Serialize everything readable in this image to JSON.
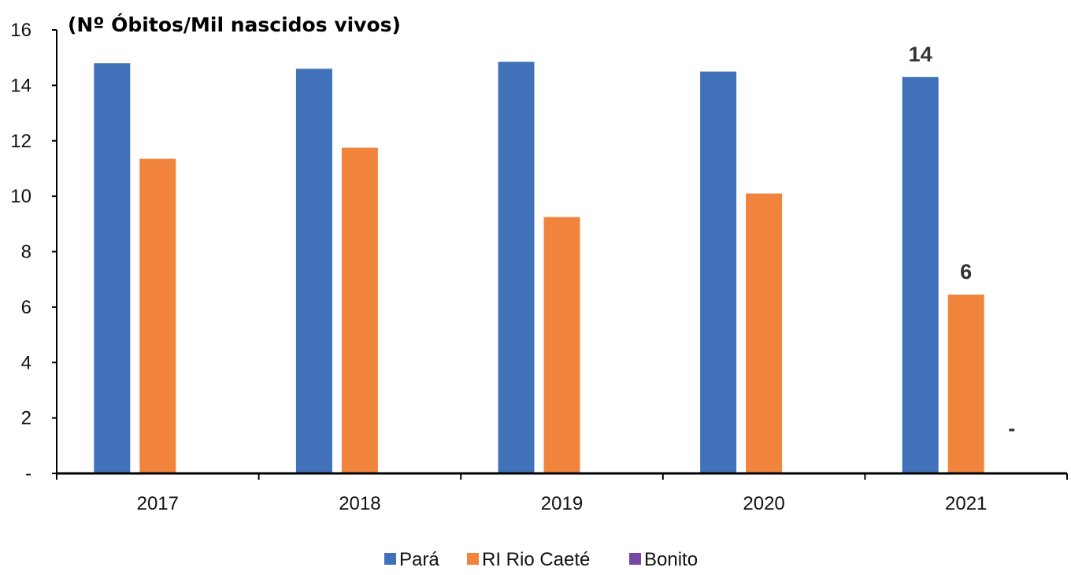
{
  "chart_data": {
    "type": "bar",
    "title": "(Nº Óbitos/Mil nascidos vivos)",
    "xlabel": "",
    "ylabel": "",
    "ylim": [
      0,
      16
    ],
    "y_ticks": [
      {
        "value": 0,
        "label": "-"
      },
      {
        "value": 2,
        "label": "2"
      },
      {
        "value": 4,
        "label": "4"
      },
      {
        "value": 6,
        "label": "6"
      },
      {
        "value": 8,
        "label": "8"
      },
      {
        "value": 10,
        "label": "10"
      },
      {
        "value": 12,
        "label": "12"
      },
      {
        "value": 14,
        "label": "14"
      },
      {
        "value": 16,
        "label": "16"
      }
    ],
    "grid": false,
    "legend_position": "bottom",
    "categories": [
      "2017",
      "2018",
      "2019",
      "2020",
      "2021"
    ],
    "series": [
      {
        "name": "Pará",
        "color": "#4172b9",
        "values": [
          14.8,
          14.6,
          14.85,
          14.5,
          14.3
        ]
      },
      {
        "name": "RI Rio Caeté",
        "color": "#f0843c",
        "values": [
          11.35,
          11.75,
          9.25,
          10.1,
          6.45
        ]
      },
      {
        "name": "Bonito",
        "color": "#7448a3",
        "values": [
          null,
          null,
          null,
          null,
          0
        ]
      }
    ],
    "data_labels": [
      {
        "series": 0,
        "category": 4,
        "text": "14"
      },
      {
        "series": 1,
        "category": 4,
        "text": "6"
      },
      {
        "series": 2,
        "category": 4,
        "text": "-"
      }
    ]
  }
}
